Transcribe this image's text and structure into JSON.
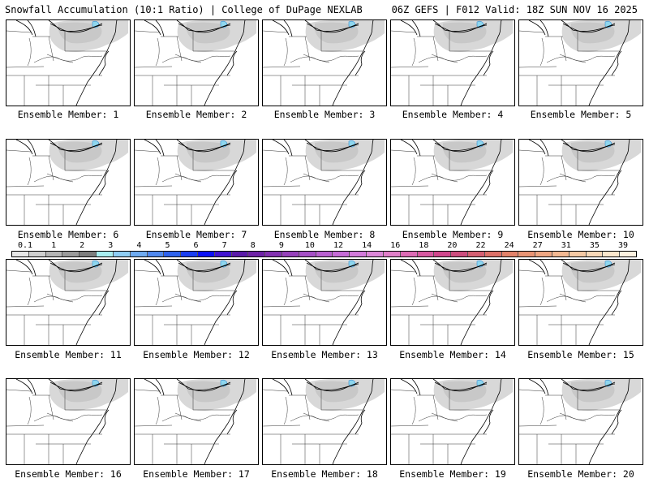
{
  "header": {
    "left_title": "Snowfall Accumulation (10:1 Ratio) | College of DuPage NEXLAB",
    "right_title": "06Z GEFS | F012 Valid: 18Z SUN NOV 16 2025"
  },
  "panels": [
    {
      "label": "Ensemble Member: 1"
    },
    {
      "label": "Ensemble Member: 2"
    },
    {
      "label": "Ensemble Member: 3"
    },
    {
      "label": "Ensemble Member: 4"
    },
    {
      "label": "Ensemble Member: 5"
    },
    {
      "label": "Ensemble Member: 6"
    },
    {
      "label": "Ensemble Member: 7"
    },
    {
      "label": "Ensemble Member: 8"
    },
    {
      "label": "Ensemble Member: 9"
    },
    {
      "label": "Ensemble Member: 10"
    },
    {
      "label": "Ensemble Member: 11"
    },
    {
      "label": "Ensemble Member: 12"
    },
    {
      "label": "Ensemble Member: 13"
    },
    {
      "label": "Ensemble Member: 14"
    },
    {
      "label": "Ensemble Member: 15"
    },
    {
      "label": "Ensemble Member: 16"
    },
    {
      "label": "Ensemble Member: 17"
    },
    {
      "label": "Ensemble Member: 18"
    },
    {
      "label": "Ensemble Member: 19"
    },
    {
      "label": "Ensemble Member: 20"
    }
  ],
  "colorbar": {
    "labels": [
      "0.1",
      "1",
      "2",
      "3",
      "4",
      "5",
      "6",
      "7",
      "8",
      "9",
      "10",
      "12",
      "14",
      "16",
      "18",
      "20",
      "22",
      "24",
      "27",
      "31",
      "35",
      "39"
    ],
    "colors": [
      "#e6e6e6",
      "#cfcfcf",
      "#b4b4b4",
      "#9a9a9a",
      "#7d7d7d",
      "#a8eef0",
      "#8ecdf3",
      "#6fabf0",
      "#4f88ee",
      "#2e62ec",
      "#1a3ef0",
      "#0a10f5",
      "#4012d0",
      "#5a1aa8",
      "#6e22a6",
      "#8230b0",
      "#9640ba",
      "#a54fc6",
      "#b85fd0",
      "#c56bd6",
      "#d27ada",
      "#dc87d8",
      "#e07fc8",
      "#dc6bb4",
      "#d658a0",
      "#d0468c",
      "#cc4d7e",
      "#d45f72",
      "#dc7068",
      "#e2826a",
      "#e89474",
      "#eea682",
      "#f2b892",
      "#f5c9a4",
      "#f8d8b8",
      "#fbe6cc",
      "#fdf1e0"
    ]
  }
}
